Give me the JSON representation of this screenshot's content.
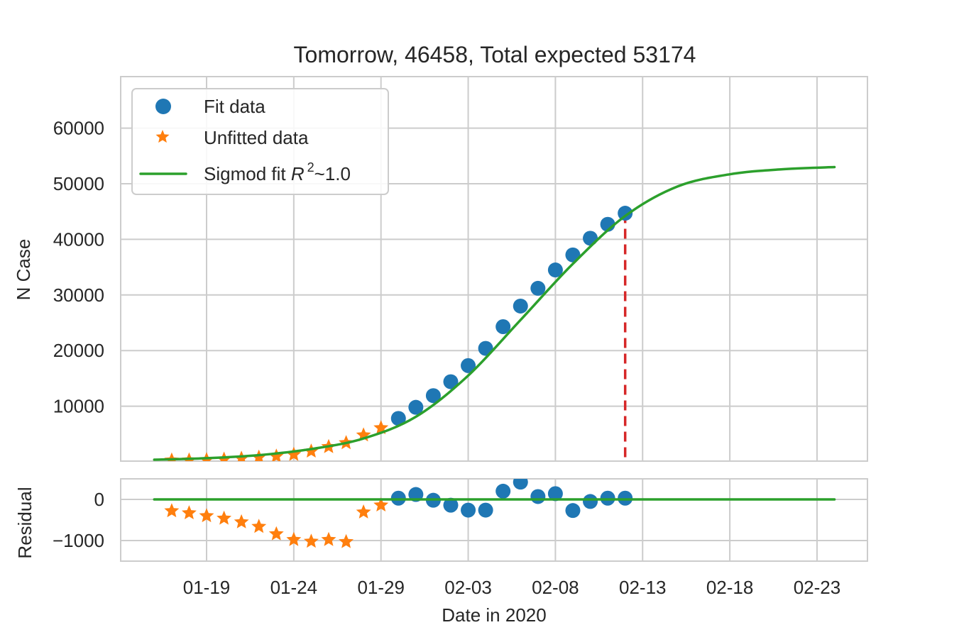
{
  "chart_data": [
    {
      "panel": "main",
      "type": "line",
      "title": "Tomorrow, 46458, Total expected 53174",
      "xlabel": "",
      "ylabel": "N Case",
      "ylim": [
        0,
        69000
      ],
      "yticks": [
        10000,
        20000,
        30000,
        40000,
        50000,
        60000
      ],
      "ytick_labels": [
        "10000",
        "20000",
        "30000",
        "40000",
        "50000",
        "60000"
      ],
      "grid": true,
      "legend_position": "upper left",
      "legend": [
        {
          "label": "Fit data",
          "marker": "circle",
          "color": "#1f77b4"
        },
        {
          "label": "Unfitted data",
          "marker": "star",
          "color": "#ff7f0e"
        },
        {
          "label": "Sigmod fit R^2~1.0",
          "marker": "line",
          "color": "#2ca02c"
        }
      ],
      "series": [
        {
          "name": "Unfitted data",
          "marker": "star",
          "color": "#ff7f0e",
          "x": [
            "01-17",
            "01-18",
            "01-19",
            "01-20",
            "01-21",
            "01-22",
            "01-23",
            "01-24",
            "01-25",
            "01-26",
            "01-27",
            "01-28",
            "01-29"
          ],
          "values": [
            280,
            300,
            350,
            450,
            600,
            800,
            1000,
            1300,
            1900,
            2700,
            3400,
            4800,
            6100
          ]
        },
        {
          "name": "Fit data",
          "marker": "circle",
          "color": "#1f77b4",
          "x": [
            "01-30",
            "01-31",
            "02-01",
            "02-02",
            "02-03",
            "02-04",
            "02-05",
            "02-06",
            "02-07",
            "02-08",
            "02-09",
            "02-10",
            "02-11",
            "02-12"
          ],
          "values": [
            7800,
            9800,
            11900,
            14400,
            17300,
            20400,
            24300,
            28000,
            31200,
            34500,
            37200,
            40200,
            42700,
            44700
          ]
        },
        {
          "name": "Sigmod fit",
          "marker": "line",
          "color": "#2ca02c",
          "x": [
            "01-16",
            "01-19",
            "01-22",
            "01-25",
            "01-28",
            "01-31",
            "02-03",
            "02-06",
            "02-09",
            "02-12",
            "02-15",
            "02-18",
            "02-21",
            "02-24"
          ],
          "values": [
            380,
            650,
            1200,
            2300,
            4200,
            8100,
            15500,
            25500,
            35600,
            44200,
            49500,
            51700,
            52600,
            53000
          ]
        }
      ],
      "annotations": [
        {
          "type": "vline",
          "x": "02-12",
          "ymin": 0,
          "ymax": 44700,
          "style": "dashed",
          "color": "#d62728"
        }
      ]
    },
    {
      "panel": "residual",
      "type": "scatter",
      "xlabel": "Date in 2020",
      "ylabel": "Residual",
      "ylim": [
        -1500,
        500
      ],
      "yticks": [
        0,
        -1000
      ],
      "ytick_labels": [
        "0",
        "−1000"
      ],
      "categories": [
        "01-19",
        "01-24",
        "01-29",
        "02-03",
        "02-08",
        "02-13",
        "02-18",
        "02-23"
      ],
      "grid": true,
      "series": [
        {
          "name": "Unfitted data residual",
          "marker": "star",
          "color": "#ff7f0e",
          "x": [
            "01-17",
            "01-18",
            "01-19",
            "01-20",
            "01-21",
            "01-22",
            "01-23",
            "01-24",
            "01-25",
            "01-26",
            "01-27",
            "01-28",
            "01-29"
          ],
          "values": [
            -280,
            -330,
            -400,
            -460,
            -550,
            -660,
            -840,
            -980,
            -1020,
            -980,
            -1030,
            -310,
            -140
          ]
        },
        {
          "name": "Fit data residual",
          "marker": "circle",
          "color": "#1f77b4",
          "x": [
            "01-30",
            "01-31",
            "02-01",
            "02-02",
            "02-03",
            "02-04",
            "02-05",
            "02-06",
            "02-07",
            "02-08",
            "02-09",
            "02-10",
            "02-11",
            "02-12"
          ],
          "values": [
            30,
            120,
            -20,
            -140,
            -260,
            -260,
            200,
            420,
            70,
            140,
            -270,
            -50,
            30,
            30
          ]
        },
        {
          "name": "Zero line",
          "marker": "line",
          "color": "#2ca02c",
          "x": [
            "01-16",
            "02-24"
          ],
          "values": [
            0,
            0
          ]
        }
      ]
    }
  ],
  "labels": {
    "title": "Tomorrow, 46458, Total expected 53174",
    "ylabel_main": "N Case",
    "ylabel_residual": "Residual",
    "xlabel": "Date in 2020",
    "legend_fit": "Fit data",
    "legend_unfitted": "Unfitted data",
    "legend_sigmoid_prefix": "Sigmod fit ",
    "legend_sigmoid_r": "R",
    "legend_sigmoid_sup": "2",
    "legend_sigmoid_suffix": "~1.0",
    "yticks_main": [
      "10000",
      "20000",
      "30000",
      "40000",
      "50000",
      "60000"
    ],
    "yticks_residual": [
      "0",
      "−1000"
    ],
    "xticks": [
      "01-19",
      "01-24",
      "01-29",
      "02-03",
      "02-08",
      "02-13",
      "02-18",
      "02-23"
    ]
  },
  "colors": {
    "fit": "#1f77b4",
    "unfitted": "#ff7f0e",
    "sigmoid": "#2ca02c",
    "vline": "#d62728",
    "grid": "#cccccc",
    "text": "#262626"
  }
}
